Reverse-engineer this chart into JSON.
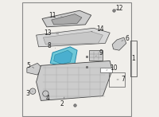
{
  "bg_color": "#f0eeea",
  "border_color": "#888888",
  "highlight_color": "#6fc8d8",
  "line_color": "#555555",
  "part_color": "#cccccc",
  "part_dark": "#999999",
  "part_outline": "#444444",
  "label_color": "#222222",
  "label_fontsize": 5.5
}
